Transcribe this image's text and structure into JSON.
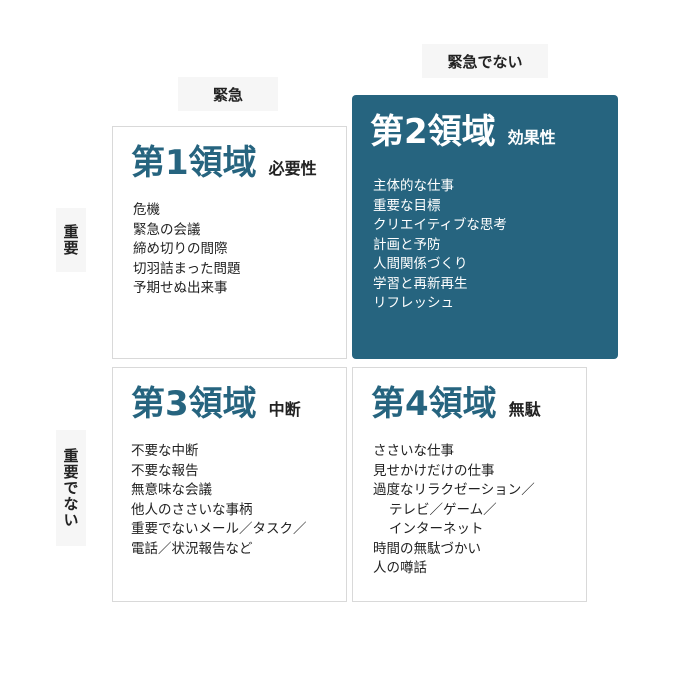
{
  "axes": {
    "urgent": "緊急",
    "not_urgent": "緊急でない",
    "important": "重要",
    "not_important": "重要でない"
  },
  "quadrants": [
    {
      "title": "第1領域",
      "subtitle": "必要性",
      "items": [
        "危機",
        "緊急の会議",
        "締め切りの間際",
        "切羽詰まった問題",
        "予期せぬ出来事"
      ]
    },
    {
      "title": "第2領域",
      "subtitle": "効果性",
      "items": [
        "主体的な仕事",
        "重要な目標",
        "クリエイティブな思考",
        "計画と予防",
        "人間関係づくり",
        "学習と再新再生",
        "リフレッシュ"
      ]
    },
    {
      "title": "第3領域",
      "subtitle": "中断",
      "items": [
        "不要な中断",
        "不要な報告",
        "無意味な会議",
        "他人のささいな事柄",
        "重要でないメール／タスク／",
        "電話／状況報告など"
      ]
    },
    {
      "title": "第4領域",
      "subtitle": "無駄",
      "items": [
        "ささいな仕事",
        "見せかけだけの仕事",
        "過度なリラクゼーション／",
        "テレビ／ゲーム／",
        "インターネット",
        "時間の無駄づかい",
        "人の噂話"
      ]
    }
  ],
  "colors": {
    "accent": "#26647f",
    "text": "#222222",
    "label_bg": "#f6f6f6",
    "border": "#d9d9d9"
  }
}
